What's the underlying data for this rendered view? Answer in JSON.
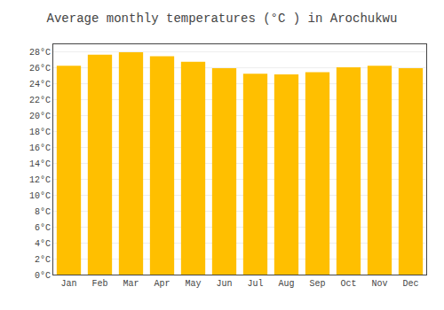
{
  "chart_data": {
    "type": "bar",
    "title": "Average monthly temperatures (°C ) in Arochukwu",
    "categories": [
      "Jan",
      "Feb",
      "Mar",
      "Apr",
      "May",
      "Jun",
      "Jul",
      "Aug",
      "Sep",
      "Oct",
      "Nov",
      "Dec"
    ],
    "values": [
      26.3,
      27.7,
      28.0,
      27.5,
      26.8,
      26.0,
      25.3,
      25.2,
      25.5,
      26.1,
      26.3,
      26.0
    ],
    "color": "#FFBF00",
    "ylim": [
      0,
      29
    ],
    "yticks": [
      {
        "value": 0,
        "label": "0°C"
      },
      {
        "value": 2,
        "label": "2°C"
      },
      {
        "value": 4,
        "label": "4°C"
      },
      {
        "value": 6,
        "label": "6°C"
      },
      {
        "value": 8,
        "label": "8°C"
      },
      {
        "value": 10,
        "label": "10°C"
      },
      {
        "value": 12,
        "label": "12°C"
      },
      {
        "value": 14,
        "label": "14°C"
      },
      {
        "value": 16,
        "label": "16°C"
      },
      {
        "value": 18,
        "label": "18°C"
      },
      {
        "value": 20,
        "label": "20°C"
      },
      {
        "value": 22,
        "label": "22°C"
      },
      {
        "value": 24,
        "label": "24°C"
      },
      {
        "value": 26,
        "label": "26°C"
      },
      {
        "value": 28,
        "label": "28°C"
      }
    ],
    "grid": true
  }
}
